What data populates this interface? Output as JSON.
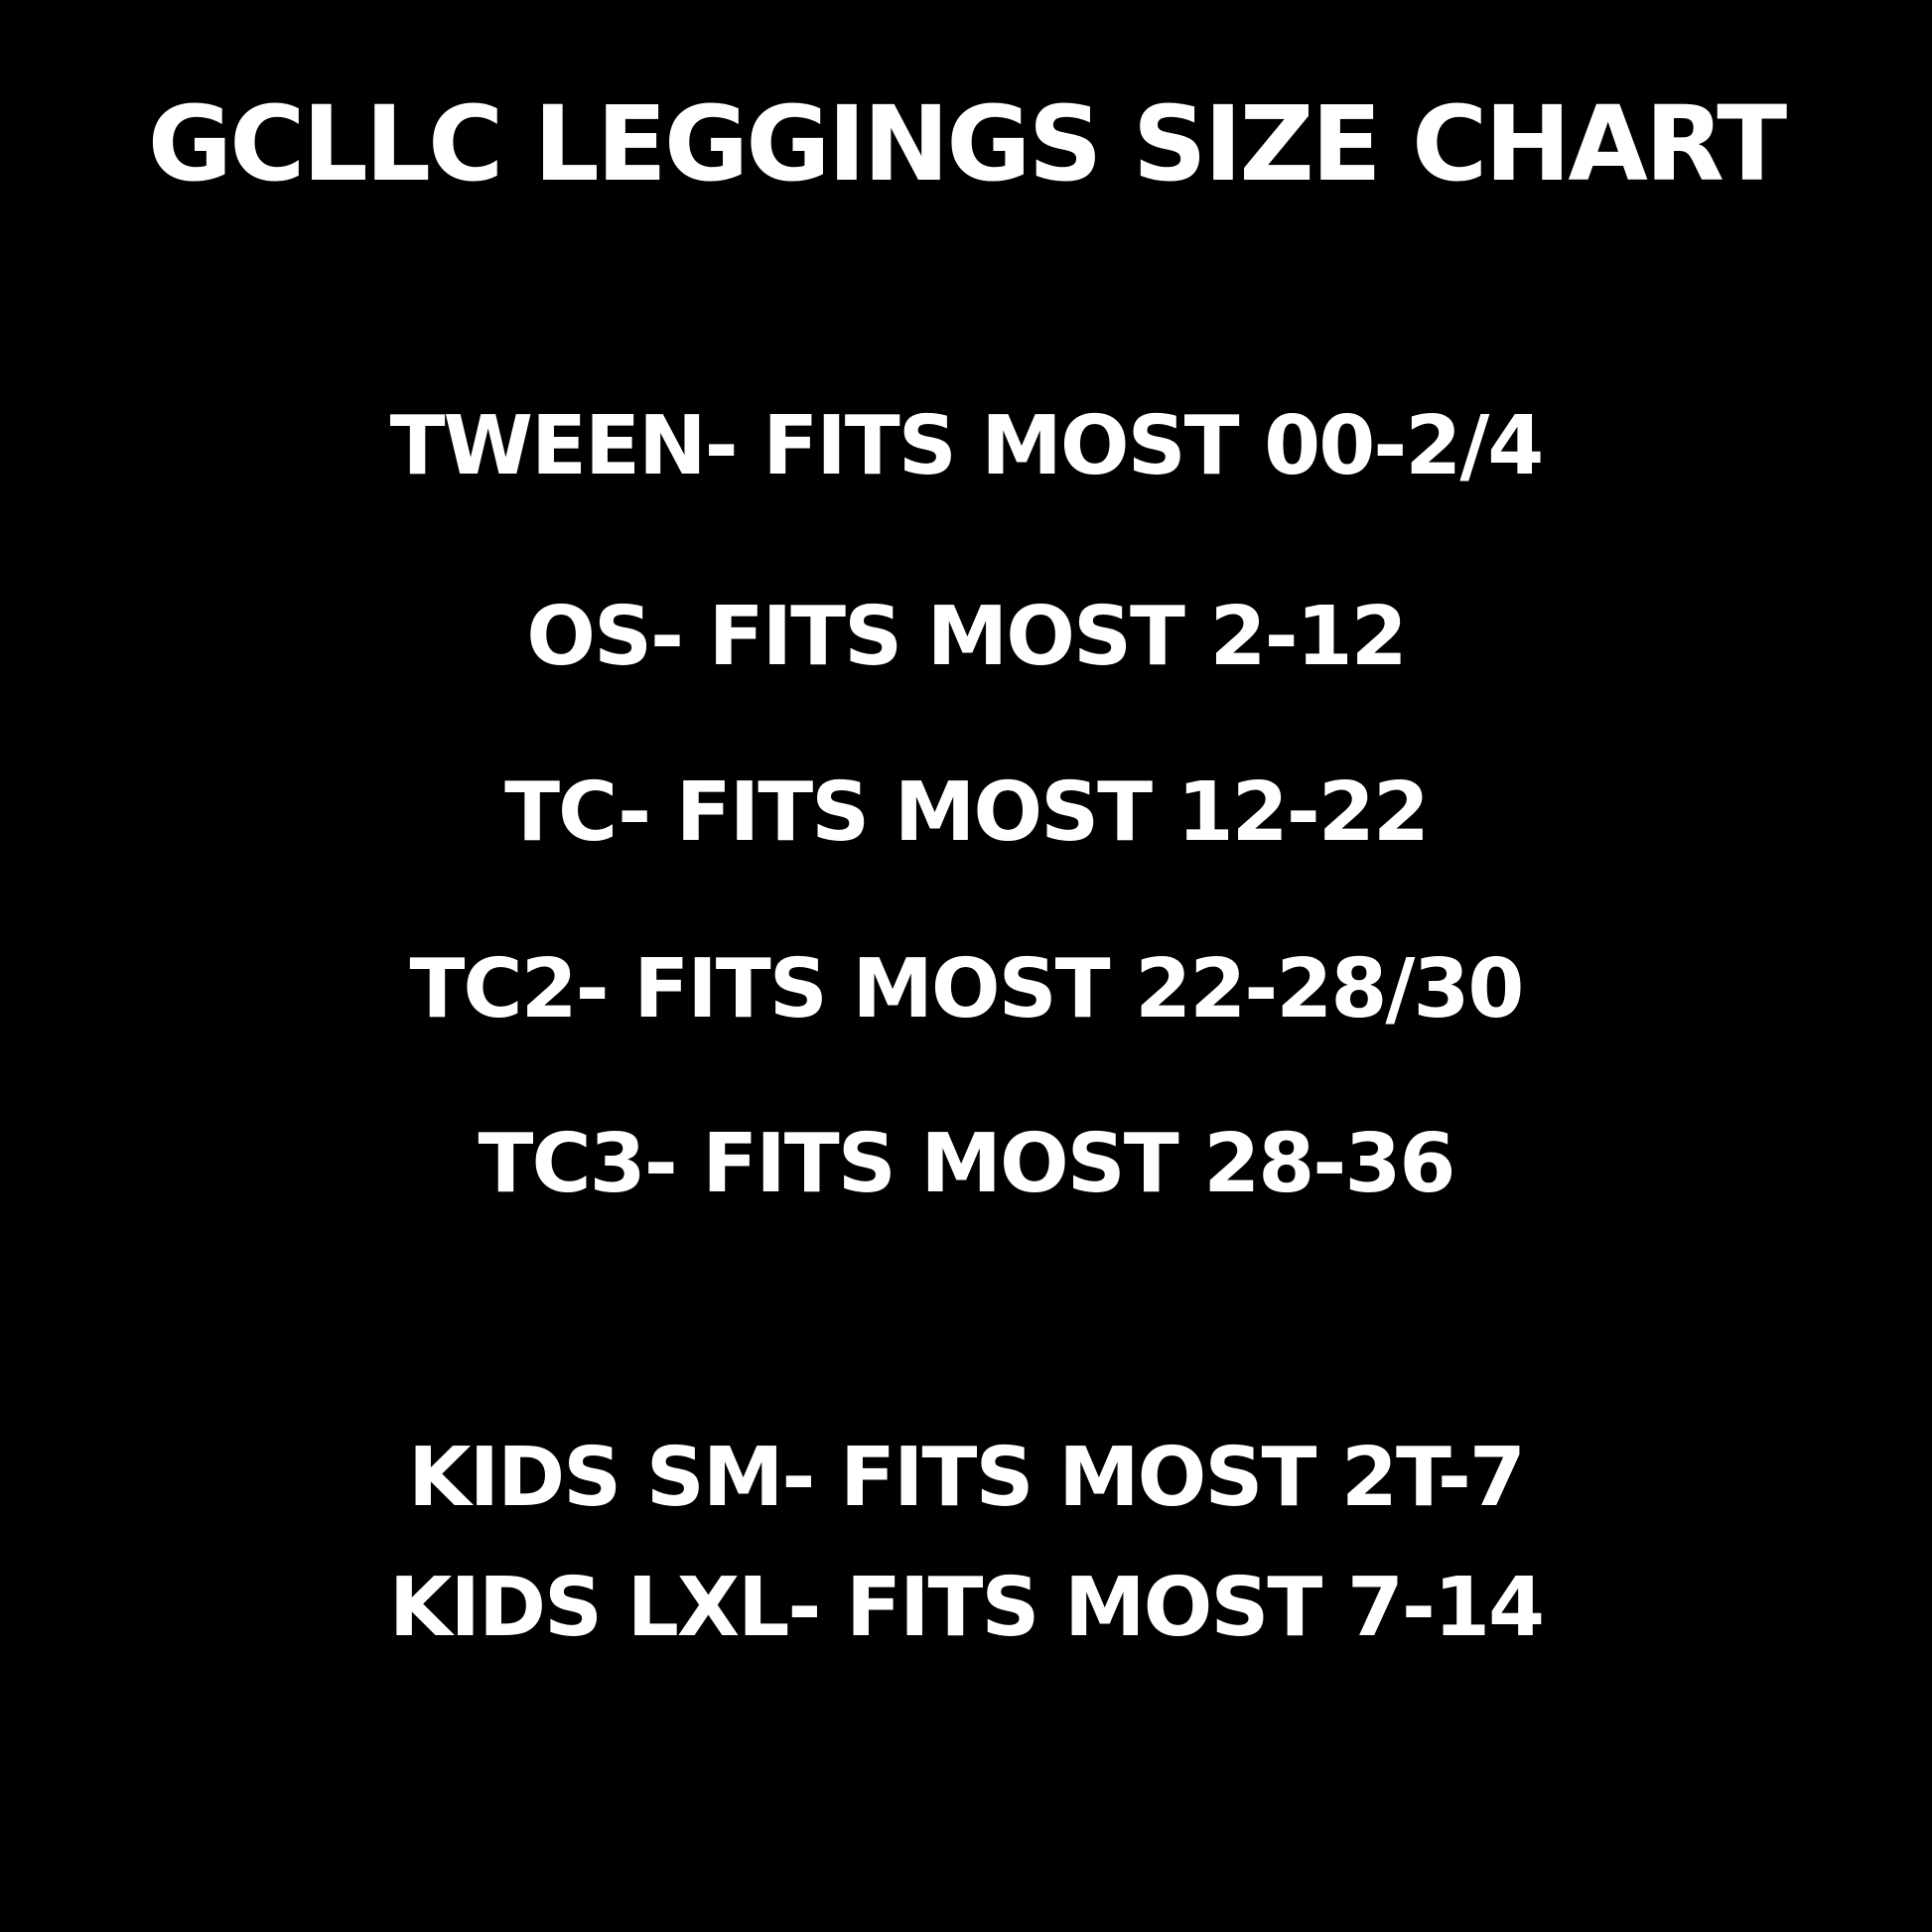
{
  "title": "GCLLC LEGGINGS SIZE CHART",
  "sizes": [
    "TWEEN- FITS MOST 00-2/4",
    "OS- FITS MOST 2-12",
    "TC- FITS MOST 12-22",
    "TC2- FITS MOST 22-28/30",
    "TC3- FITS MOST 28-36"
  ],
  "kids_sizes": [
    "KIDS SM- FITS MOST 2T-7",
    "KIDS LXL- FITS MOST 7-14"
  ],
  "colors": {
    "background": "#000000",
    "text": "#ffffff"
  }
}
